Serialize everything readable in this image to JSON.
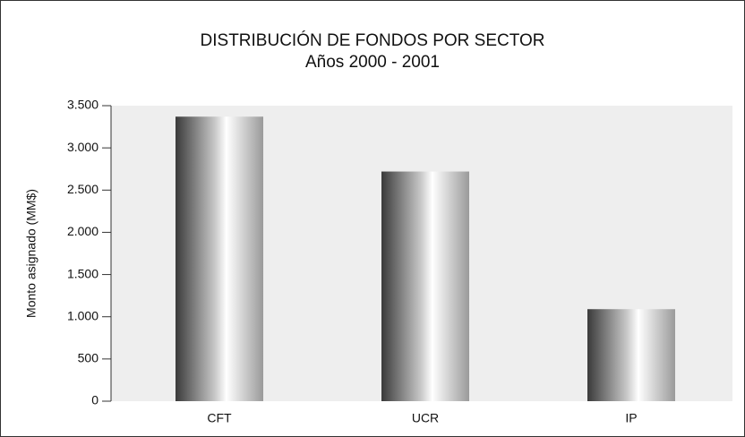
{
  "chart_data": {
    "type": "bar",
    "title": "DISTRIBUCIÓN DE FONDOS POR SECTOR",
    "subtitle": "Años 2000 - 2001",
    "y_label": "Monto asignado (MM$)",
    "categories": [
      "CFT",
      "UCR",
      "IP"
    ],
    "values": [
      3370,
      2720,
      1090
    ],
    "ylim": [
      0,
      3500
    ],
    "yticks": [
      0,
      500,
      {
        "value": 1000,
        "label": "1.000"
      },
      {
        "value": 1500,
        "label": "1.500"
      },
      {
        "value": 2000,
        "label": "2.000"
      },
      {
        "value": 2500,
        "label": "2.500"
      },
      {
        "value": 3000,
        "label": "3.000"
      },
      {
        "value": 3500,
        "label": "3.500"
      }
    ]
  }
}
